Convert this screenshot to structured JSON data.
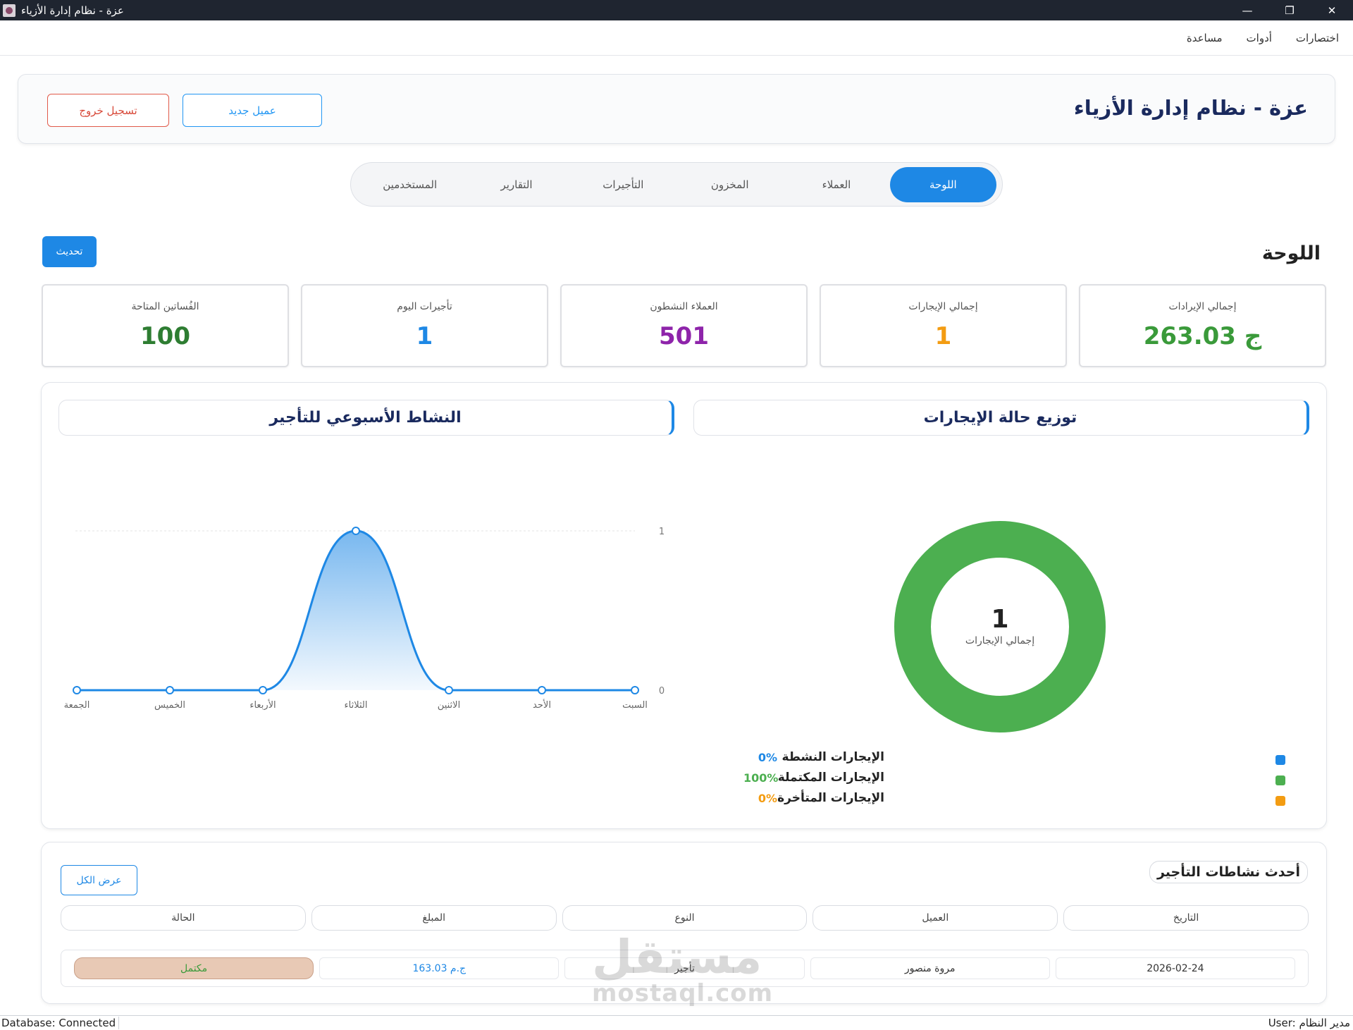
{
  "window": {
    "title": "عزة - نظام إدارة الأزياء",
    "controls": {
      "minimize": "—",
      "restore": "❐",
      "close": "✕"
    }
  },
  "menubar": {
    "items": [
      "اختصارات",
      "أدوات",
      "مساعدة"
    ]
  },
  "header": {
    "title": "عزة - نظام إدارة الأزياء",
    "new_customer": "عميل جديد",
    "logout": "تسجيل خروج"
  },
  "tabs": [
    "اللوحة",
    "العملاء",
    "المخزون",
    "التأجيرات",
    "التقارير",
    "المستخدمين"
  ],
  "dashboard": {
    "title": "اللوحة",
    "refresh": "تحديث",
    "stats": [
      {
        "label": "إجمالي الإيرادات",
        "value": "263.03 ج",
        "color": "#3a9a3a"
      },
      {
        "label": "إجمالي الإيجارات",
        "value": "1",
        "color": "#f39c12"
      },
      {
        "label": "العملاء النشطون",
        "value": "501",
        "color": "#8e24aa"
      },
      {
        "label": "تأجيرات اليوم",
        "value": "1",
        "color": "#1e88e5"
      },
      {
        "label": "الفُساتين المتاحة",
        "value": "100",
        "color": "#2e7d32"
      }
    ]
  },
  "status_chart": {
    "title": "توزيع حالة الإيجارات",
    "center_value": "1",
    "center_caption": "إجمالي الإيجارات",
    "legend": [
      {
        "label": "الإيجارات النشطة",
        "pct": "0%",
        "color": "#1e88e5"
      },
      {
        "label": "الإيجارات المكتملة",
        "pct": "100%",
        "color": "#4caf50"
      },
      {
        "label": "الإيجارات المتأخرة",
        "pct": "0%",
        "color": "#f39c12"
      }
    ]
  },
  "weekly_chart": {
    "title": "النشاط الأسبوعي للتأجير"
  },
  "chart_data": [
    {
      "type": "pie",
      "title": "توزيع حالة الإيجارات",
      "categories": [
        "الإيجارات النشطة",
        "الإيجارات المكتملة",
        "الإيجارات المتأخرة"
      ],
      "values": [
        0,
        100,
        0
      ],
      "colors": [
        "#1e88e5",
        "#4caf50",
        "#f39c12"
      ]
    },
    {
      "type": "area",
      "title": "النشاط الأسبوعي للتأجير",
      "categories": [
        "السبت",
        "الأحد",
        "الاثنين",
        "الثلاثاء",
        "الأربعاء",
        "الخميس",
        "الجمعة"
      ],
      "values": [
        0,
        0,
        0,
        1,
        0,
        0,
        0
      ],
      "ylim": [
        0,
        1
      ],
      "yticks": [
        "0",
        "1"
      ],
      "color": "#1e88e5"
    }
  ],
  "recent": {
    "title": "أحدث نشاطات التأجير",
    "view_all": "عرض الكل",
    "columns": [
      "التاريخ",
      "العميل",
      "النوع",
      "المبلغ",
      "الحالة"
    ],
    "rows": [
      {
        "date": "2026-02-24",
        "customer": "مروة منصور",
        "type": "تأجير",
        "amount": "163.03 ج.م",
        "status": "مكتمل"
      }
    ]
  },
  "watermark": {
    "line1": "مستقل",
    "line2": "mostaql.com"
  },
  "statusbar": {
    "left": "Database: Connected",
    "right": "User: مدير النظام"
  }
}
